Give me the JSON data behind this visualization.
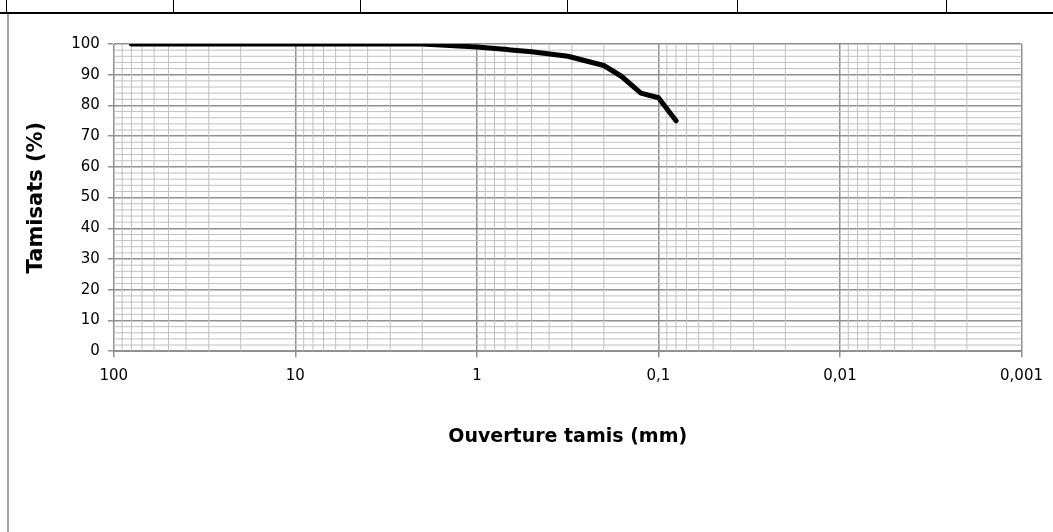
{
  "chart_data": {
    "type": "line",
    "xlabel": "Ouverture tamis (mm)",
    "ylabel": "Tamisats (%)",
    "x": [
      80,
      2,
      1,
      0.5,
      0.315,
      0.2,
      0.16,
      0.125,
      0.1,
      0.08
    ],
    "series": [
      {
        "color": "#000000",
        "values": [
          100,
          100,
          99,
          97.5,
          96,
          93,
          89.5,
          84,
          82.5,
          75
        ]
      }
    ],
    "log": "x",
    "xlim": [
      100,
      0.001
    ],
    "xticks": [
      100,
      10,
      1,
      {
        "value": 0.1,
        "label": "0,1"
      },
      {
        "value": 0.01,
        "label": "0,01"
      },
      {
        "value": 0.001,
        "label": "0,001"
      }
    ],
    "ylim": [
      0,
      100
    ],
    "yticks": [
      0,
      10,
      20,
      30,
      40,
      50,
      60,
      70,
      80,
      90,
      100
    ],
    "grid": true,
    "legend": false,
    "marker": "none",
    "line_style": "solid"
  }
}
